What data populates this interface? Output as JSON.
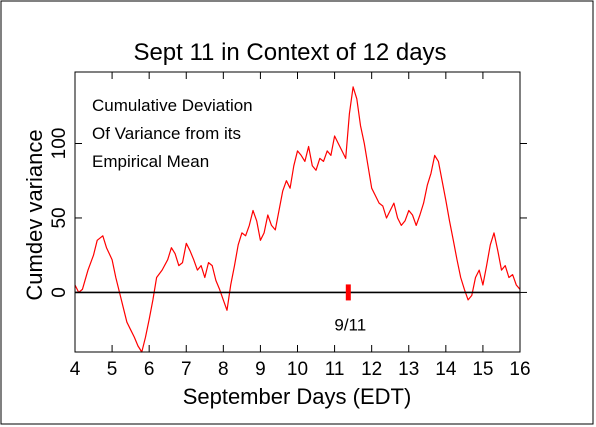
{
  "chart_data": {
    "type": "line",
    "title": "Sept 11 in Context of 12 days",
    "xlabel": "September Days (EDT)",
    "ylabel": "Cumdev variance",
    "xlim": [
      4,
      16
    ],
    "ylim": [
      -40,
      148
    ],
    "x_ticks": [
      4,
      5,
      6,
      7,
      8,
      9,
      10,
      11,
      12,
      13,
      14,
      15,
      16
    ],
    "x_tick_labels": [
      "4",
      "5",
      "6",
      "7",
      "8",
      "9",
      "10",
      "11",
      "12",
      "13",
      "14",
      "15",
      "16"
    ],
    "y_ticks": [
      0,
      50,
      100
    ],
    "y_tick_labels": [
      "0",
      "50",
      "100"
    ],
    "annotation_lines": [
      "Cumulative Deviation",
      "Of Variance from its",
      "Empirical Mean"
    ],
    "zero_line": true,
    "grid": false,
    "marker": {
      "x": 11.37,
      "label": "9/11",
      "color": "#ff0000"
    },
    "series": [
      {
        "color": "#ff0000",
        "x": [
          4.0,
          4.1,
          4.2,
          4.35,
          4.5,
          4.6,
          4.75,
          4.85,
          5.0,
          5.1,
          5.2,
          5.3,
          5.4,
          5.5,
          5.6,
          5.7,
          5.8,
          5.9,
          6.0,
          6.1,
          6.2,
          6.35,
          6.5,
          6.6,
          6.7,
          6.8,
          6.9,
          7.0,
          7.1,
          7.2,
          7.3,
          7.4,
          7.5,
          7.6,
          7.7,
          7.8,
          7.9,
          8.0,
          8.1,
          8.2,
          8.3,
          8.4,
          8.5,
          8.6,
          8.7,
          8.8,
          8.9,
          9.0,
          9.1,
          9.2,
          9.3,
          9.4,
          9.5,
          9.6,
          9.7,
          9.8,
          9.9,
          10.0,
          10.1,
          10.2,
          10.3,
          10.4,
          10.5,
          10.6,
          10.7,
          10.8,
          10.9,
          11.0,
          11.1,
          11.2,
          11.3,
          11.4,
          11.5,
          11.6,
          11.7,
          11.8,
          11.9,
          12.0,
          12.1,
          12.2,
          12.3,
          12.4,
          12.5,
          12.6,
          12.7,
          12.8,
          12.9,
          13.0,
          13.1,
          13.2,
          13.3,
          13.4,
          13.5,
          13.6,
          13.7,
          13.8,
          13.9,
          14.0,
          14.1,
          14.2,
          14.3,
          14.4,
          14.5,
          14.6,
          14.7,
          14.8,
          14.9,
          15.0,
          15.1,
          15.2,
          15.3,
          15.4,
          15.5,
          15.6,
          15.7,
          15.8,
          15.9,
          16.0
        ],
        "values": [
          5,
          0,
          2,
          15,
          25,
          35,
          38,
          30,
          22,
          10,
          0,
          -10,
          -20,
          -25,
          -30,
          -36,
          -40,
          -30,
          -18,
          -5,
          10,
          15,
          22,
          30,
          26,
          18,
          20,
          33,
          28,
          22,
          15,
          18,
          10,
          20,
          18,
          8,
          2,
          -5,
          -12,
          5,
          18,
          32,
          40,
          38,
          45,
          55,
          48,
          35,
          40,
          52,
          45,
          42,
          55,
          68,
          75,
          70,
          85,
          95,
          92,
          88,
          98,
          85,
          82,
          90,
          88,
          95,
          92,
          105,
          100,
          95,
          90,
          120,
          138,
          130,
          112,
          100,
          85,
          70,
          65,
          60,
          58,
          50,
          55,
          60,
          50,
          45,
          48,
          55,
          52,
          45,
          52,
          60,
          72,
          80,
          92,
          88,
          75,
          62,
          48,
          35,
          22,
          10,
          2,
          -5,
          -2,
          10,
          15,
          5,
          18,
          32,
          40,
          28,
          15,
          18,
          10,
          12,
          5,
          2
        ]
      }
    ]
  }
}
